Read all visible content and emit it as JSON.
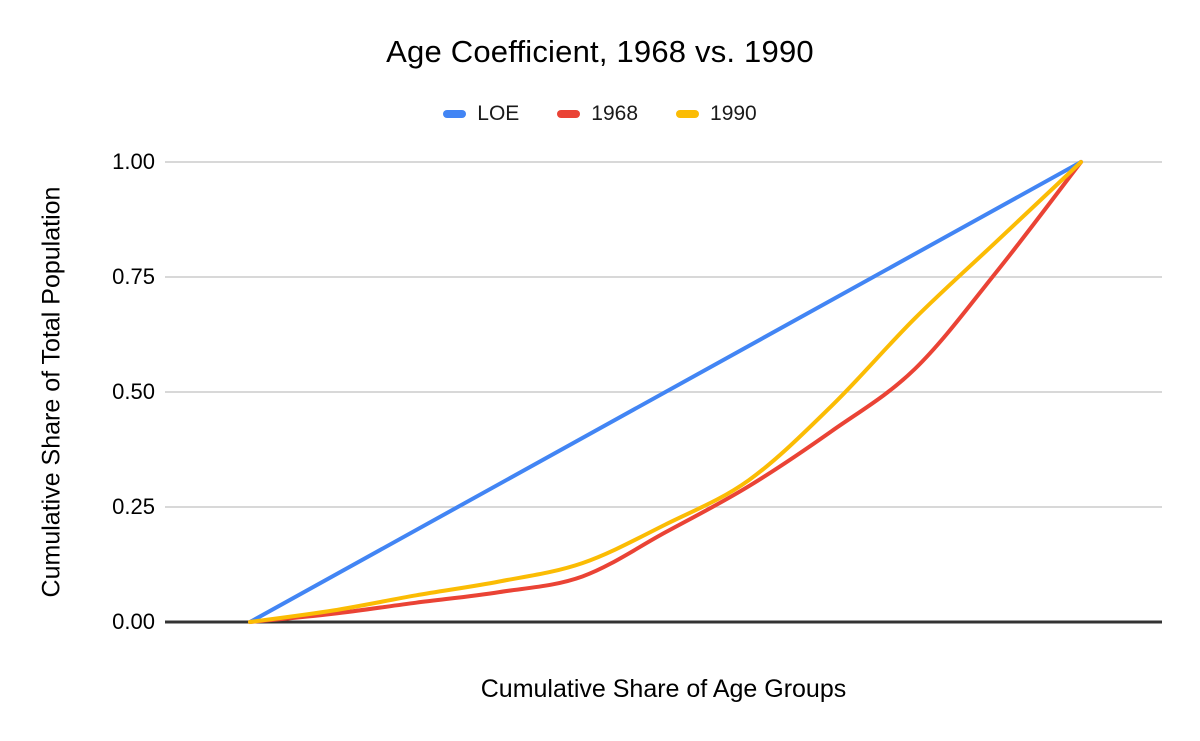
{
  "title": "Age Coefficient, 1968 vs. 1990",
  "axes": {
    "y_title": "Cumulative Share of Total Population",
    "x_title": "Cumulative Share of Age Groups",
    "y_ticks": [
      "1.00",
      "0.75",
      "0.50",
      "0.25",
      "0.00"
    ]
  },
  "colors": {
    "background": "#ffffff",
    "grid": "#cccccc",
    "axis": "#333333",
    "text": "#000000",
    "loe": "#4285f4",
    "s1968": "#ea4335",
    "s1990": "#fbbc04"
  },
  "chart_data": {
    "type": "line",
    "title": "Age Coefficient, 1968 vs. 1990",
    "xlabel": "Cumulative Share of Age Groups",
    "ylabel": "Cumulative Share of Total Population",
    "xlim": [
      0,
      1
    ],
    "ylim": [
      0,
      1
    ],
    "y_tick_values": [
      0,
      0.25,
      0.5,
      0.75,
      1.0
    ],
    "grid": true,
    "legend_position": "top",
    "x": [
      0,
      0.1,
      0.2,
      0.3,
      0.4,
      0.5,
      0.6,
      0.7,
      0.8,
      0.9,
      1.0
    ],
    "series": [
      {
        "name": "LOE",
        "color": "#4285f4",
        "smooth": false,
        "values": [
          0,
          0.1,
          0.2,
          0.3,
          0.4,
          0.5,
          0.6,
          0.7,
          0.8,
          0.9,
          1.0
        ]
      },
      {
        "name": "1968",
        "color": "#ea4335",
        "smooth": true,
        "values": [
          0,
          0.018,
          0.042,
          0.065,
          0.099,
          0.195,
          0.295,
          0.415,
          0.55,
          0.765,
          1.0
        ]
      },
      {
        "name": "1990",
        "color": "#fbbc04",
        "smooth": true,
        "values": [
          0,
          0.025,
          0.058,
          0.088,
          0.128,
          0.212,
          0.308,
          0.47,
          0.66,
          0.83,
          1.0
        ]
      }
    ]
  }
}
